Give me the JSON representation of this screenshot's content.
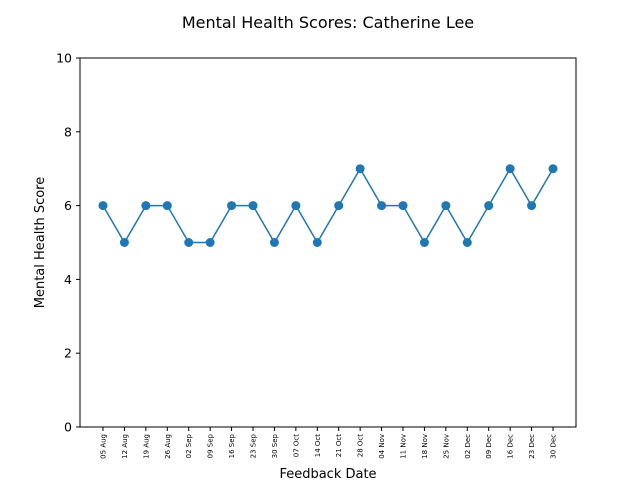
{
  "chart_data": {
    "type": "line",
    "title": "Mental Health Scores: Catherine Lee",
    "xlabel": "Feedback Date",
    "ylabel": "Mental Health Score",
    "ylim": [
      0,
      10
    ],
    "yticks": [
      0,
      2,
      4,
      6,
      8,
      10
    ],
    "grid": false,
    "line_color": "#1f77b4",
    "x": [
      "05 Aug",
      "12 Aug",
      "19 Aug",
      "26 Aug",
      "02 Sep",
      "09 Sep",
      "16 Sep",
      "23 Sep",
      "30 Sep",
      "07 Oct",
      "14 Oct",
      "21 Oct",
      "28 Oct",
      "04 Nov",
      "11 Nov",
      "18 Nov",
      "25 Nov",
      "02 Dec",
      "09 Dec",
      "16 Dec",
      "23 Dec",
      "30 Dec"
    ],
    "series": [
      {
        "values": [
          6,
          5,
          6,
          6,
          5,
          5,
          6,
          6,
          5,
          6,
          5,
          6,
          7,
          6,
          6,
          5,
          6,
          5,
          6,
          7,
          6,
          7
        ]
      }
    ]
  }
}
